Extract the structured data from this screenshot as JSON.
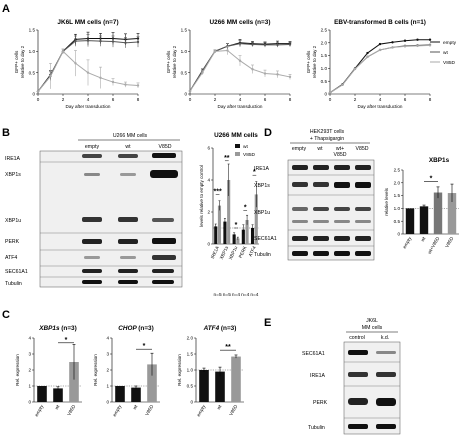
{
  "panel_labels": {
    "a": "A",
    "b": "B",
    "c": "C",
    "d": "D",
    "e": "E"
  },
  "legend": {
    "items": [
      "empty",
      "wt",
      "V85D"
    ],
    "colors": [
      "#111111",
      "#555555",
      "#aaaaaa"
    ]
  },
  "line_axes": {
    "ylabel_1": "GFP+ cells",
    "ylabel_2": "relative to day 2",
    "xlabel": "Day after transduction",
    "xticks": [
      "0",
      "2",
      "4",
      "6",
      "8"
    ]
  },
  "chart_data": [
    {
      "type": "line",
      "title": "JK6L MM cells (n=7)",
      "xlabel": "Day after transduction",
      "ylabel": "GFP+ cells relative to day 2",
      "ylim": [
        0,
        1.5
      ],
      "yticks": [
        "0",
        "0.5",
        "1.0",
        "1.5"
      ],
      "x": [
        0,
        1,
        2,
        3,
        4,
        5,
        6,
        7,
        8
      ],
      "series": [
        {
          "name": "empty",
          "values": [
            0.06,
            0.45,
            1.0,
            1.28,
            1.3,
            1.3,
            1.3,
            1.28,
            1.3
          ],
          "err": [
            0,
            0.1,
            0.05,
            0.12,
            0.15,
            0.12,
            0.14,
            0.13,
            0.12
          ]
        },
        {
          "name": "wt",
          "values": [
            0.06,
            0.42,
            1.0,
            1.24,
            1.25,
            1.24,
            1.23,
            1.2,
            1.22
          ],
          "err": [
            0,
            0.1,
            0.05,
            0.12,
            0.14,
            0.12,
            0.13,
            0.12,
            0.12
          ]
        },
        {
          "name": "V85D",
          "values": [
            0.06,
            0.42,
            1.0,
            0.72,
            0.5,
            0.38,
            0.28,
            0.22,
            0.2
          ],
          "err": [
            0,
            0.3,
            0.05,
            0.3,
            0.3,
            0.25,
            0.08,
            0.06,
            0.06
          ]
        }
      ]
    },
    {
      "type": "line",
      "title": "U266 MM cells (n=3)",
      "xlabel": "Day after transduction",
      "ylabel": "GFP+ cells relative to day 2",
      "ylim": [
        0,
        1.5
      ],
      "yticks": [
        "0",
        "0.5",
        "1.0",
        "1.5"
      ],
      "x": [
        0,
        1,
        2,
        3,
        4,
        5,
        6,
        7,
        8
      ],
      "series": [
        {
          "name": "empty",
          "values": [
            0.07,
            0.55,
            1.0,
            1.12,
            1.2,
            1.18,
            1.17,
            1.18,
            1.18
          ],
          "err": [
            0,
            0.04,
            0.03,
            0.06,
            0.08,
            0.05,
            0.05,
            0.06,
            0.05
          ]
        },
        {
          "name": "wt",
          "values": [
            0.07,
            0.55,
            1.0,
            1.12,
            1.18,
            1.16,
            1.15,
            1.15,
            1.16
          ],
          "err": [
            0,
            0.04,
            0.03,
            0.06,
            0.07,
            0.05,
            0.05,
            0.05,
            0.05
          ]
        },
        {
          "name": "V85D",
          "values": [
            0.07,
            0.5,
            1.0,
            1.02,
            0.78,
            0.58,
            0.48,
            0.46,
            0.4
          ],
          "err": [
            0,
            0.05,
            0.03,
            0.1,
            0.12,
            0.1,
            0.08,
            0.08,
            0.06
          ]
        }
      ]
    },
    {
      "type": "line",
      "title": "EBV-transformed B cells (n=1)",
      "xlabel": "Day after transduction",
      "ylabel": "GFP+ cells relative to day 2",
      "ylim": [
        0,
        2.5
      ],
      "yticks": [
        "0",
        "0.5",
        "1.0",
        "1.5",
        "2.0",
        "2.5"
      ],
      "x": [
        0,
        1,
        2,
        3,
        4,
        5,
        6,
        7,
        8
      ],
      "series": [
        {
          "name": "empty",
          "values": [
            0.05,
            0.38,
            1.0,
            1.6,
            1.95,
            2.02,
            2.08,
            2.12,
            2.12
          ],
          "err": []
        },
        {
          "name": "wt",
          "values": [
            0.05,
            0.36,
            0.98,
            1.45,
            1.72,
            1.82,
            1.88,
            1.9,
            1.92
          ],
          "err": []
        },
        {
          "name": "V85D",
          "values": [
            0.05,
            0.36,
            0.98,
            1.45,
            1.72,
            1.82,
            1.86,
            1.88,
            1.9
          ],
          "err": []
        }
      ]
    },
    {
      "type": "bar",
      "title": "U266 MM cells",
      "ylabel": "levels relative to empty control",
      "ylim": [
        0,
        6
      ],
      "yticks": [
        "0",
        "2",
        "4",
        "6"
      ],
      "categories": [
        "IRE1A",
        "XBP1s",
        "XBP1u",
        "PERK",
        "ATF4"
      ],
      "n_labels": [
        "n=5",
        "n=5",
        "n=4",
        "n=4",
        "n=4"
      ],
      "significance": [
        "***",
        "**",
        "*",
        "*",
        "*"
      ],
      "series": [
        {
          "name": "wt",
          "values": [
            1.1,
            1.4,
            0.6,
            0.9,
            1.0
          ],
          "err": [
            0.15,
            0.2,
            0.1,
            0.3,
            0.2
          ]
        },
        {
          "name": "V85D",
          "values": [
            2.4,
            4.0,
            0.35,
            1.5,
            3.1
          ],
          "err": [
            0.3,
            1.0,
            0.08,
            0.3,
            0.8
          ]
        }
      ]
    },
    {
      "type": "bar",
      "title": "XBP1s",
      "ylabel": "relative levels",
      "ylim": [
        0,
        2.5
      ],
      "yticks": [
        "0",
        "0.5",
        "1.0",
        "1.5",
        "2.0",
        "2.5"
      ],
      "categories": [
        "empty",
        "wt",
        "wt+V85D",
        "V85D"
      ],
      "values": [
        1.0,
        1.08,
        1.62,
        1.6
      ],
      "err": [
        0,
        0.05,
        0.22,
        0.35
      ],
      "significance": [
        "*"
      ]
    },
    {
      "type": "bar",
      "title": "XBP1s",
      "title_suffix": "(n=3)",
      "ylabel": "Rel. expression",
      "ylim": [
        0,
        4
      ],
      "yticks": [
        "0",
        "1",
        "2",
        "3",
        "4"
      ],
      "categories": [
        "empty",
        "wt",
        "V85D"
      ],
      "values": [
        1.0,
        0.85,
        2.5
      ],
      "err": [
        0,
        0.1,
        1.1
      ],
      "significance": [
        "*"
      ]
    },
    {
      "type": "bar",
      "title": "CHOP",
      "title_suffix": "(n=3)",
      "ylabel": "Rel. expression",
      "ylim": [
        0,
        4
      ],
      "yticks": [
        "0",
        "1",
        "2",
        "3",
        "4"
      ],
      "categories": [
        "empty",
        "wt",
        "V85D"
      ],
      "values": [
        1.0,
        0.9,
        2.35
      ],
      "err": [
        0,
        0.1,
        0.7
      ],
      "significance": [
        "*"
      ]
    },
    {
      "type": "bar",
      "title": "ATF4",
      "title_suffix": "(n=3)",
      "ylabel": "Rel. expression",
      "ylim": [
        0,
        2.0
      ],
      "yticks": [
        "0",
        "0.5",
        "1.0",
        "1.5",
        "2.0"
      ],
      "categories": [
        "empty",
        "wt",
        "V85D"
      ],
      "values": [
        1.0,
        0.95,
        1.42
      ],
      "err": [
        0.06,
        0.14,
        0.05
      ],
      "significance": [
        "**"
      ]
    }
  ],
  "blot_b": {
    "title": "U266 MM cells",
    "lanes": [
      "empty",
      "wt",
      "V85D"
    ],
    "rows": [
      "IRE1A",
      "XBP1s",
      "XBP1u",
      "PERK",
      "ATF4",
      "SEC61A1",
      "Tubulin"
    ]
  },
  "blot_d": {
    "title_1": "HEK293T cells",
    "title_2": "+ Thapsigargin",
    "lanes": [
      "empty",
      "wt",
      "wt+",
      "V85D"
    ],
    "lane_sub": "V85D",
    "rows": [
      "IRE1A",
      "XBP1s",
      "XBP1u",
      "SEC61A1",
      "Tubulin"
    ]
  },
  "blot_e": {
    "title_1": "JK6L",
    "title_2": "MM cells",
    "lanes": [
      "control",
      "k.d."
    ],
    "rows": [
      "SEC61A1",
      "IRE1A",
      "PERK",
      "Tubulin"
    ]
  }
}
